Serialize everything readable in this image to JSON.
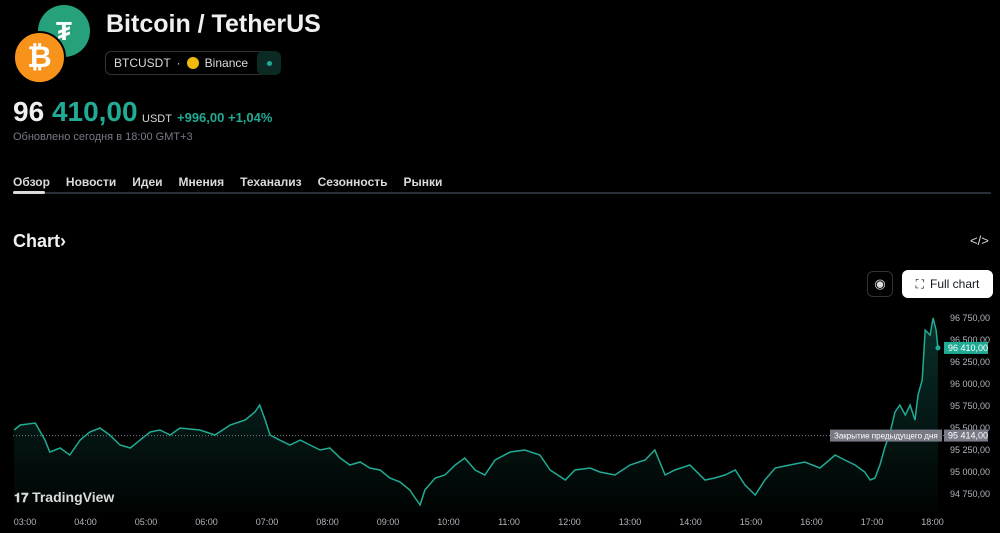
{
  "header": {
    "title": "Bitcoin / TetherUS",
    "symbol": "BTCUSDT",
    "separator": "·",
    "exchange": "Binance",
    "logo_base": "₿",
    "logo_quote": "₮"
  },
  "quote": {
    "price_int": "96",
    "price_dec": "410,00",
    "currency": "USDT",
    "change": "+996,00",
    "change_pct": "+1,04%",
    "updated": "Обновлено сегодня в 18:00 GMT+3"
  },
  "tabs": [
    "Обзор",
    "Новости",
    "Идеи",
    "Мнения",
    "Теханализ",
    "Сезонность",
    "Рынки"
  ],
  "chart_section": {
    "title": "Chart",
    "chevron": "›",
    "embed_icon": "</>",
    "camera_icon": "📷",
    "full_chart": "Full chart",
    "brand": "TradingView"
  },
  "colors": {
    "accent": "#22ab94",
    "btc": "#f7931a",
    "usdt": "#26a17b"
  },
  "chart_data": {
    "type": "area",
    "x_ticks": [
      "03:00",
      "04:00",
      "05:00",
      "06:00",
      "07:00",
      "08:00",
      "09:00",
      "10:00",
      "11:00",
      "12:00",
      "13:00",
      "14:00",
      "15:00",
      "16:00",
      "17:00",
      "18:00"
    ],
    "y_ticks": [
      "94 750,00",
      "95 000,00",
      "95 250,00",
      "95 500,00",
      "95 750,00",
      "96 000,00",
      "96 250,00",
      "96 500,00",
      "96 750,00"
    ],
    "y_tick_values": [
      94750,
      95000,
      95250,
      95500,
      95750,
      96000,
      96250,
      96500,
      96750
    ],
    "last_price": 96410,
    "last_label": "96 410,00",
    "prev_close": 95414,
    "prev_close_label": "95 414,00",
    "prev_close_text": "Закрытие предыдущего дня",
    "points": [
      [
        2.82,
        95477
      ],
      [
        2.92,
        95534
      ],
      [
        3.17,
        95557
      ],
      [
        3.33,
        95363
      ],
      [
        3.41,
        95227
      ],
      [
        3.58,
        95273
      ],
      [
        3.74,
        95193
      ],
      [
        3.91,
        95363
      ],
      [
        4.07,
        95454
      ],
      [
        4.24,
        95500
      ],
      [
        4.4,
        95420
      ],
      [
        4.57,
        95307
      ],
      [
        4.74,
        95273
      ],
      [
        4.9,
        95363
      ],
      [
        5.07,
        95454
      ],
      [
        5.23,
        95477
      ],
      [
        5.4,
        95420
      ],
      [
        5.56,
        95500
      ],
      [
        5.89,
        95477
      ],
      [
        6.14,
        95420
      ],
      [
        6.39,
        95534
      ],
      [
        6.64,
        95591
      ],
      [
        6.8,
        95682
      ],
      [
        6.88,
        95761
      ],
      [
        6.97,
        95591
      ],
      [
        7.05,
        95420
      ],
      [
        7.21,
        95363
      ],
      [
        7.38,
        95307
      ],
      [
        7.55,
        95363
      ],
      [
        7.71,
        95307
      ],
      [
        7.88,
        95250
      ],
      [
        8.04,
        95273
      ],
      [
        8.21,
        95159
      ],
      [
        8.37,
        95079
      ],
      [
        8.54,
        95114
      ],
      [
        8.7,
        95045
      ],
      [
        8.87,
        95023
      ],
      [
        9.03,
        94932
      ],
      [
        9.2,
        94886
      ],
      [
        9.36,
        94795
      ],
      [
        9.45,
        94705
      ],
      [
        9.53,
        94625
      ],
      [
        9.61,
        94795
      ],
      [
        9.78,
        94932
      ],
      [
        9.94,
        94966
      ],
      [
        10.11,
        95079
      ],
      [
        10.27,
        95159
      ],
      [
        10.44,
        95023
      ],
      [
        10.6,
        94966
      ],
      [
        10.77,
        95136
      ],
      [
        11.02,
        95227
      ],
      [
        11.26,
        95250
      ],
      [
        11.51,
        95193
      ],
      [
        11.68,
        95023
      ],
      [
        11.93,
        94909
      ],
      [
        12.09,
        95023
      ],
      [
        12.34,
        95045
      ],
      [
        12.5,
        95000
      ],
      [
        12.75,
        94966
      ],
      [
        13.0,
        95079
      ],
      [
        13.25,
        95136
      ],
      [
        13.41,
        95250
      ],
      [
        13.58,
        94966
      ],
      [
        13.74,
        95023
      ],
      [
        13.99,
        95079
      ],
      [
        14.24,
        94909
      ],
      [
        14.4,
        94932
      ],
      [
        14.57,
        94966
      ],
      [
        14.74,
        95023
      ],
      [
        14.9,
        94852
      ],
      [
        15.07,
        94739
      ],
      [
        15.23,
        94909
      ],
      [
        15.4,
        95045
      ],
      [
        15.64,
        95079
      ],
      [
        15.89,
        95114
      ],
      [
        16.14,
        95045
      ],
      [
        16.39,
        95193
      ],
      [
        16.55,
        95136
      ],
      [
        16.72,
        95079
      ],
      [
        16.88,
        95000
      ],
      [
        16.97,
        94909
      ],
      [
        17.05,
        94932
      ],
      [
        17.13,
        95079
      ],
      [
        17.21,
        95273
      ],
      [
        17.3,
        95454
      ],
      [
        17.38,
        95682
      ],
      [
        17.46,
        95761
      ],
      [
        17.55,
        95648
      ],
      [
        17.63,
        95761
      ],
      [
        17.71,
        95591
      ],
      [
        17.76,
        95875
      ],
      [
        17.83,
        96045
      ],
      [
        17.88,
        96613
      ],
      [
        17.96,
        96556
      ],
      [
        18.01,
        96750
      ],
      [
        18.06,
        96613
      ],
      [
        18.09,
        96410
      ]
    ],
    "ylim": [
      94600,
      96900
    ],
    "grid": false,
    "legend": "none"
  }
}
